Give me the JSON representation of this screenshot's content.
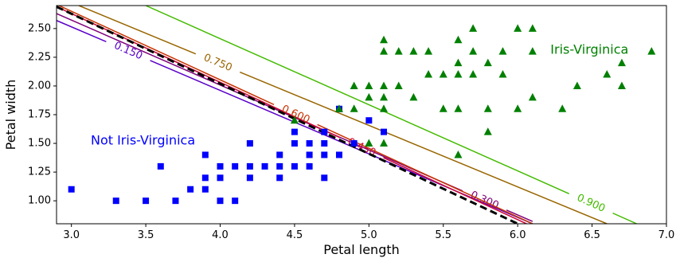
{
  "chart_data": {
    "type": "scatter",
    "title": "",
    "xlabel": "Petal length",
    "ylabel": "Petal width",
    "xlim": [
      2.9,
      7.0
    ],
    "ylim": [
      0.8,
      2.7
    ],
    "xticks": [
      "3.0",
      "3.5",
      "4.0",
      "4.5",
      "5.0",
      "5.5",
      "6.0",
      "6.5",
      "7.0"
    ],
    "yticks": [
      "1.00",
      "1.25",
      "1.50",
      "1.75",
      "2.00",
      "2.25",
      "2.50"
    ],
    "grid": false,
    "class_labels": [
      {
        "text": "Not Iris-Virginica",
        "color": "#0000ff",
        "x": 3.13,
        "y": 1.52
      },
      {
        "text": "Iris-Virginica",
        "color": "#008000",
        "x": 6.22,
        "y": 2.31
      }
    ],
    "series": [
      {
        "marker": "square",
        "color": "#0000ff",
        "points": [
          [
            3.0,
            1.1
          ],
          [
            3.3,
            1.0
          ],
          [
            3.5,
            1.0
          ],
          [
            3.6,
            1.3
          ],
          [
            3.7,
            1.0
          ],
          [
            3.8,
            1.1
          ],
          [
            3.9,
            1.4
          ],
          [
            3.9,
            1.2
          ],
          [
            3.9,
            1.1
          ],
          [
            4.0,
            1.3
          ],
          [
            4.0,
            1.2
          ],
          [
            4.0,
            1.0
          ],
          [
            4.1,
            1.3
          ],
          [
            4.1,
            1.0
          ],
          [
            4.2,
            1.5
          ],
          [
            4.2,
            1.3
          ],
          [
            4.2,
            1.2
          ],
          [
            4.3,
            1.3
          ],
          [
            4.4,
            1.4
          ],
          [
            4.4,
            1.3
          ],
          [
            4.4,
            1.2
          ],
          [
            4.5,
            1.6
          ],
          [
            4.5,
            1.5
          ],
          [
            4.5,
            1.3
          ],
          [
            4.6,
            1.5
          ],
          [
            4.6,
            1.4
          ],
          [
            4.6,
            1.3
          ],
          [
            4.7,
            1.6
          ],
          [
            4.7,
            1.5
          ],
          [
            4.7,
            1.4
          ],
          [
            4.7,
            1.2
          ],
          [
            4.8,
            1.8
          ],
          [
            4.8,
            1.4
          ],
          [
            4.9,
            1.5
          ],
          [
            5.0,
            1.7
          ],
          [
            5.1,
            1.6
          ]
        ]
      },
      {
        "marker": "triangle",
        "color": "#008000",
        "points": [
          [
            4.5,
            1.7
          ],
          [
            4.8,
            1.8
          ],
          [
            4.9,
            2.0
          ],
          [
            4.9,
            1.8
          ],
          [
            5.0,
            2.0
          ],
          [
            5.0,
            1.9
          ],
          [
            5.0,
            1.5
          ],
          [
            5.1,
            2.4
          ],
          [
            5.1,
            2.3
          ],
          [
            5.1,
            2.0
          ],
          [
            5.1,
            1.9
          ],
          [
            5.1,
            1.8
          ],
          [
            5.1,
            1.5
          ],
          [
            5.2,
            2.3
          ],
          [
            5.2,
            2.0
          ],
          [
            5.3,
            2.3
          ],
          [
            5.3,
            1.9
          ],
          [
            5.4,
            2.3
          ],
          [
            5.4,
            2.1
          ],
          [
            5.5,
            2.1
          ],
          [
            5.5,
            1.8
          ],
          [
            5.6,
            2.4
          ],
          [
            5.6,
            2.2
          ],
          [
            5.6,
            2.1
          ],
          [
            5.6,
            1.8
          ],
          [
            5.6,
            1.4
          ],
          [
            5.7,
            2.5
          ],
          [
            5.7,
            2.3
          ],
          [
            5.7,
            2.1
          ],
          [
            5.8,
            2.2
          ],
          [
            5.8,
            1.8
          ],
          [
            5.8,
            1.6
          ],
          [
            5.9,
            2.3
          ],
          [
            5.9,
            2.1
          ],
          [
            6.0,
            2.5
          ],
          [
            6.0,
            1.8
          ],
          [
            6.1,
            2.5
          ],
          [
            6.1,
            2.3
          ],
          [
            6.1,
            1.9
          ],
          [
            6.3,
            1.8
          ],
          [
            6.4,
            2.0
          ],
          [
            6.6,
            2.1
          ],
          [
            6.7,
            2.2
          ],
          [
            6.7,
            2.0
          ],
          [
            6.9,
            2.3
          ]
        ]
      }
    ],
    "decision_boundary": {
      "style": "dashed",
      "color": "#000000",
      "points": [
        [
          2.9,
          2.69
        ],
        [
          6.0,
          0.8
        ]
      ]
    },
    "contours": [
      {
        "label": "0.150",
        "color": "#5a00c8",
        "points": [
          [
            2.9,
            2.57
          ],
          [
            6.1,
            0.8
          ]
        ],
        "label_at": [
          3.4,
          2.36
        ]
      },
      {
        "label": "0.300",
        "color": "#80007a",
        "points": [
          [
            2.9,
            2.63
          ],
          [
            6.1,
            0.82
          ]
        ],
        "label_at": [
          5.8,
          1.07
        ]
      },
      {
        "label": "0.450",
        "color": "#cc0033",
        "points": [
          [
            2.9,
            2.69
          ],
          [
            6.06,
            0.8
          ]
        ],
        "label_at": [
          5.0,
          1.6
        ]
      },
      {
        "label": "0.600",
        "color": "#c83200",
        "points": [
          [
            2.9,
            2.71
          ],
          [
            6.1,
            0.8
          ]
        ],
        "label_at": [
          4.55,
          1.87
        ]
      },
      {
        "label": "0.750",
        "color": "#996600",
        "points": [
          [
            3.05,
            2.7
          ],
          [
            6.6,
            0.8
          ]
        ],
        "label_at": [
          4.0,
          2.25
        ]
      },
      {
        "label": "0.900",
        "color": "#44bb00",
        "points": [
          [
            3.5,
            2.7
          ],
          [
            6.8,
            0.8
          ]
        ],
        "label_at": [
          6.5,
          1.0
        ]
      }
    ]
  }
}
